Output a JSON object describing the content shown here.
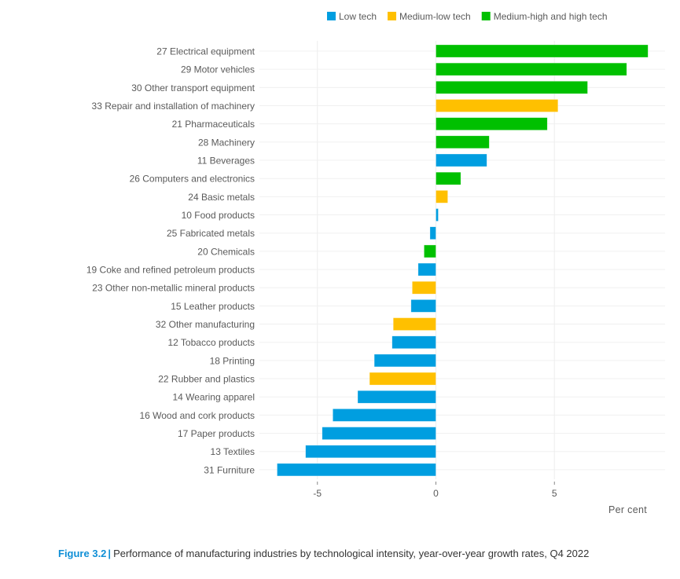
{
  "chart_data": {
    "type": "bar",
    "orientation": "horizontal",
    "title": "",
    "xlabel": "Per cent",
    "ylabel": "",
    "xlim": [
      -7.5,
      9.7
    ],
    "xticks": [
      -5,
      0,
      5
    ],
    "xtick_labels": [
      "-5",
      "0",
      "5"
    ],
    "grid": true,
    "legend_position": "top",
    "legend": [
      {
        "key": "low",
        "label": "Low tech",
        "color": "#009ee0"
      },
      {
        "key": "medlow",
        "label": "Medium-low tech",
        "color": "#ffc000"
      },
      {
        "key": "medhigh",
        "label": "Medium-high and high tech",
        "color": "#00c000"
      }
    ],
    "categories": [
      "27 Electrical equipment",
      "29 Motor vehicles",
      "30 Other transport equipment",
      "33 Repair and installation of machinery",
      "21 Pharmaceuticals",
      "28 Machinery",
      "11 Beverages",
      "26 Computers and electronics",
      "24 Basic metals",
      "10 Food products",
      "25 Fabricated metals",
      "20 Chemicals",
      "19 Coke and refined petroleum products",
      "23 Other non-metallic mineral products",
      "15 Leather products",
      "32 Other manufacturing",
      "12 Tobacco products",
      "18 Printing",
      "22 Rubber and plastics",
      "14 Wearing apparel",
      "16 Wood and cork products",
      "17 Paper products",
      "13 Textiles",
      "31 Furniture"
    ],
    "values": [
      8.95,
      8.05,
      6.4,
      5.15,
      4.7,
      2.25,
      2.15,
      1.05,
      0.5,
      0.1,
      -0.25,
      -0.5,
      -0.75,
      -1.0,
      -1.05,
      -1.8,
      -1.85,
      -2.6,
      -2.8,
      -3.3,
      -4.35,
      -4.8,
      -5.5,
      -6.7
    ],
    "groups": [
      "medhigh",
      "medhigh",
      "medhigh",
      "medlow",
      "medhigh",
      "medhigh",
      "low",
      "medhigh",
      "medlow",
      "low",
      "low",
      "medhigh",
      "low",
      "medlow",
      "low",
      "medlow",
      "low",
      "low",
      "medlow",
      "low",
      "low",
      "low",
      "low",
      "low"
    ]
  },
  "caption": {
    "figure_label": "Figure 3.2",
    "separator": "|",
    "text": "Performance of manufacturing industries by technological intensity, year-over-year growth rates, Q4 2022"
  }
}
